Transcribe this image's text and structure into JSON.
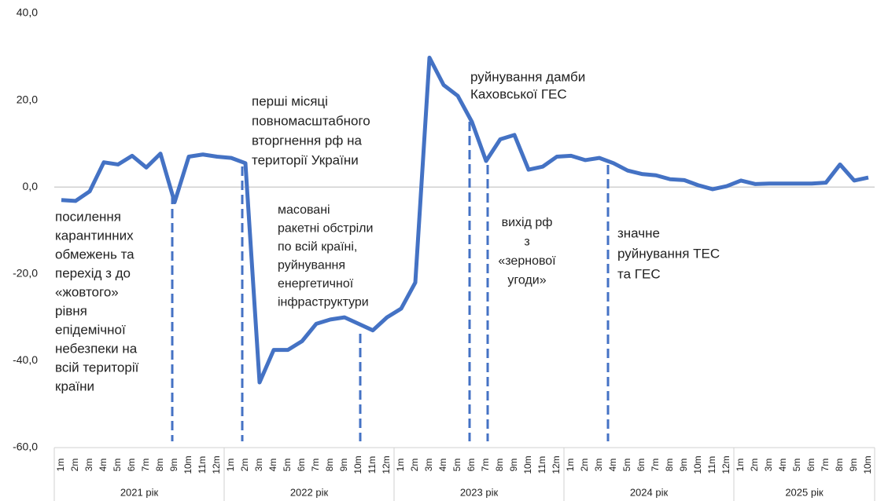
{
  "chart_data": {
    "type": "line",
    "categories": [
      "1m",
      "2m",
      "3m",
      "4m",
      "5m",
      "6m",
      "7m",
      "8m",
      "9m",
      "10m",
      "11m",
      "12m",
      "1m",
      "2m",
      "3m",
      "4m",
      "5m",
      "6m",
      "7m",
      "8m",
      "9m",
      "10m",
      "11m",
      "12m",
      "1m",
      "2m",
      "3m",
      "4m",
      "5m",
      "6m",
      "7m",
      "8m",
      "9m",
      "10m",
      "11m",
      "12m",
      "1m",
      "2m",
      "3m",
      "4m",
      "5m",
      "6m",
      "7m",
      "8m",
      "9m",
      "10m",
      "11m",
      "12m",
      "1m",
      "2m",
      "3m",
      "4m",
      "5m",
      "6m",
      "7m",
      "8m",
      "9m",
      "10m"
    ],
    "groups": [
      "2021 рік",
      "2022 рік",
      "2023 рік",
      "2024 рік",
      "2025 рік"
    ],
    "series": [
      {
        "color": "#4472c4",
        "values": [
          -3,
          -3.2,
          -1,
          5.7,
          5.2,
          7.2,
          4.5,
          7.7,
          -3.5,
          7,
          7.5,
          7,
          6.7,
          5.5,
          -45,
          -37.5,
          -37.5,
          -35.5,
          -31.5,
          -30.5,
          -30,
          -31.5,
          -33,
          -30,
          -28,
          -22,
          29.8,
          23.5,
          21,
          15,
          6,
          11,
          12,
          4,
          4.7,
          7,
          7.2,
          6.2,
          6.7,
          5.5,
          3.8,
          3,
          2.7,
          1.8,
          1.6,
          0.4,
          -0.5,
          0.2,
          1.5,
          0.7,
          0.8,
          0.8,
          0.8,
          0.8,
          1,
          5.2,
          1.5,
          2.2
        ]
      }
    ],
    "ylim": [
      -60,
      40
    ],
    "yticks": [
      {
        "value": 40,
        "label": "40,0"
      },
      {
        "value": 20,
        "label": "20,0"
      },
      {
        "value": 0,
        "label": "0,0"
      },
      {
        "value": -20,
        "label": "-20,0"
      },
      {
        "value": -40,
        "label": "-40,0"
      },
      {
        "value": -60,
        "label": "-60,0"
      }
    ],
    "annotations": [
      {
        "lines": [
          "посилення",
          "карантинних",
          "обмежень та",
          "перехід з до",
          "«жовтого»",
          "рівня",
          "епідемічної",
          "небезпеки на",
          "всій території",
          "країни"
        ]
      },
      {
        "lines": [
          "перші місяці",
          "повномасштабного",
          "вторгнення рф на",
          "території України"
        ]
      },
      {
        "lines": [
          "масовані",
          "ракетні обстріли",
          "по всій країні,",
          "руйнування",
          "енергетичної",
          "інфраструктури"
        ]
      },
      {
        "lines": [
          "руйнування дамби",
          "Каховської ГЕС"
        ]
      },
      {
        "lines": [
          "вихід рф",
          "з",
          "«зернової",
          "угоди»"
        ]
      },
      {
        "lines": [
          "значне",
          "руйнування ТЕС",
          "та ГЕС"
        ]
      }
    ]
  }
}
